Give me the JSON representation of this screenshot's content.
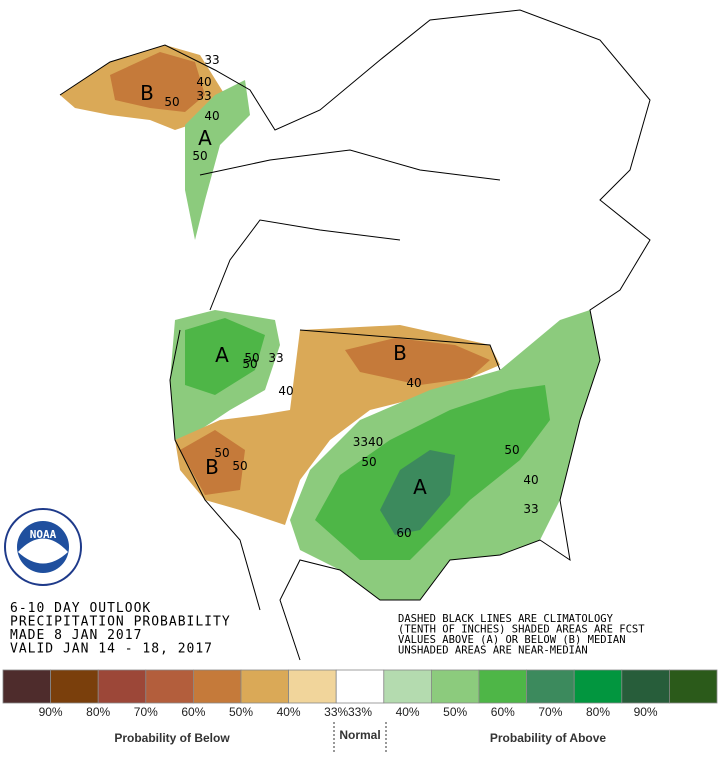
{
  "header": {
    "lines": [
      "6-10 DAY OUTLOOK",
      "PRECIPITATION PROBABILITY",
      "MADE  8 JAN 2017",
      "VALID  JAN 14 - 18, 2017"
    ]
  },
  "notes": [
    "DASHED BLACK LINES ARE CLIMATOLOGY",
    "(TENTH OF INCHES) SHADED AREAS ARE FCST",
    "VALUES ABOVE (A) OR BELOW (B) MEDIAN",
    "UNSHADED AREAS ARE NEAR-MEDIAN"
  ],
  "logo": "NOAA",
  "map_labels": [
    "B",
    "A",
    "A",
    "B",
    "B",
    "A",
    "33",
    "40",
    "33",
    "50",
    "40",
    "50",
    "50",
    "50",
    "33",
    "40",
    "40",
    "3340",
    "50",
    "50",
    "50",
    "60",
    "50",
    "40",
    "33"
  ],
  "legend": {
    "items": [
      {
        "label": "90%",
        "color": "#4e2c2c"
      },
      {
        "label": "80%",
        "color": "#7a3f0c"
      },
      {
        "label": "70%",
        "color": "#9c4738"
      },
      {
        "label": "60%",
        "color": "#b35e3c"
      },
      {
        "label": "50%",
        "color": "#c57a3a"
      },
      {
        "label": "40%",
        "color": "#daa957"
      },
      {
        "label": "33%",
        "color": "#f1d59b"
      },
      {
        "label": "33%",
        "color": "#ffffff"
      },
      {
        "label": "40%",
        "color": "#b4dbaf"
      },
      {
        "label": "50%",
        "color": "#8ccb7d"
      },
      {
        "label": "60%",
        "color": "#4eb647"
      },
      {
        "label": "70%",
        "color": "#3c8a5d"
      },
      {
        "label": "80%",
        "color": "#02963f"
      },
      {
        "label": "90%",
        "color": "#275d3a"
      },
      {
        "label": "",
        "color": "#2b5a1a"
      }
    ],
    "below": "Probability of Below",
    "normal": "Normal",
    "above": "Probability of Above"
  }
}
